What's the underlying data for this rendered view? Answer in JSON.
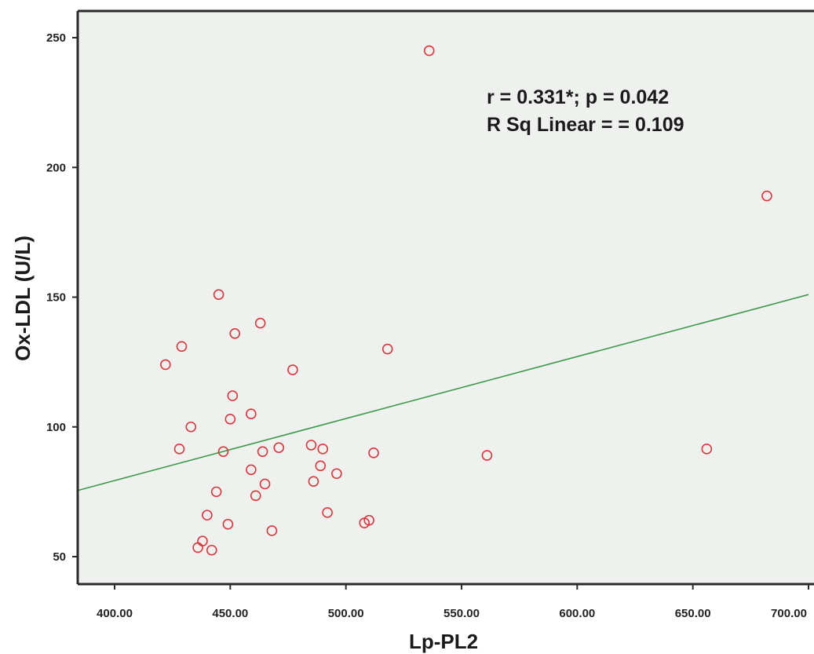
{
  "chart_data": {
    "type": "scatter",
    "title": "",
    "xlabel": "Lp-PL2",
    "ylabel": "Ox-LDL (U/L)",
    "xlim": [
      383,
      700
    ],
    "ylim": [
      36,
      260
    ],
    "x_ticks": [
      {
        "value": 400,
        "label": "400.00"
      },
      {
        "value": 450,
        "label": "450.00"
      },
      {
        "value": 500,
        "label": "500.00"
      },
      {
        "value": 550,
        "label": "550.00"
      },
      {
        "value": 600,
        "label": "600.00"
      },
      {
        "value": 650,
        "label": "650.00"
      },
      {
        "value": 700,
        "label": "700.00"
      }
    ],
    "y_ticks": [
      {
        "value": 50,
        "label": "50"
      },
      {
        "value": 100,
        "label": "100"
      },
      {
        "value": 150,
        "label": "150"
      },
      {
        "value": 200,
        "label": "200"
      },
      {
        "value": 250,
        "label": "250"
      }
    ],
    "grid": false,
    "background_color": "#eef1ee",
    "marker_color": "#d9363e",
    "fit_color": "#3d9a4a",
    "annotations": [
      "r = 0.331*; p = 0.042",
      "R Sq Linear =  = 0.109"
    ],
    "fit_line": {
      "x": [
        383,
        700
      ],
      "y": [
        75.5,
        151
      ]
    },
    "points": [
      {
        "x": 536,
        "y": 245
      },
      {
        "x": 682,
        "y": 189
      },
      {
        "x": 656,
        "y": 91.5
      },
      {
        "x": 561,
        "y": 89
      },
      {
        "x": 445,
        "y": 151
      },
      {
        "x": 463,
        "y": 140
      },
      {
        "x": 452,
        "y": 136
      },
      {
        "x": 429,
        "y": 131
      },
      {
        "x": 422,
        "y": 124
      },
      {
        "x": 518,
        "y": 130
      },
      {
        "x": 477,
        "y": 122
      },
      {
        "x": 451,
        "y": 112
      },
      {
        "x": 459,
        "y": 105
      },
      {
        "x": 450,
        "y": 103
      },
      {
        "x": 433,
        "y": 100
      },
      {
        "x": 428,
        "y": 91.5
      },
      {
        "x": 447,
        "y": 90.5
      },
      {
        "x": 464,
        "y": 90.5
      },
      {
        "x": 471,
        "y": 92
      },
      {
        "x": 485,
        "y": 93
      },
      {
        "x": 490,
        "y": 91.5
      },
      {
        "x": 512,
        "y": 90
      },
      {
        "x": 489,
        "y": 85
      },
      {
        "x": 459,
        "y": 83.5
      },
      {
        "x": 496,
        "y": 82
      },
      {
        "x": 486,
        "y": 79
      },
      {
        "x": 465,
        "y": 78
      },
      {
        "x": 461,
        "y": 73.5
      },
      {
        "x": 444,
        "y": 75
      },
      {
        "x": 440,
        "y": 66
      },
      {
        "x": 449,
        "y": 62.5
      },
      {
        "x": 468,
        "y": 60
      },
      {
        "x": 492,
        "y": 67
      },
      {
        "x": 508,
        "y": 63
      },
      {
        "x": 510,
        "y": 64
      },
      {
        "x": 438,
        "y": 56
      },
      {
        "x": 436,
        "y": 53.5
      },
      {
        "x": 442,
        "y": 52.5
      }
    ]
  }
}
